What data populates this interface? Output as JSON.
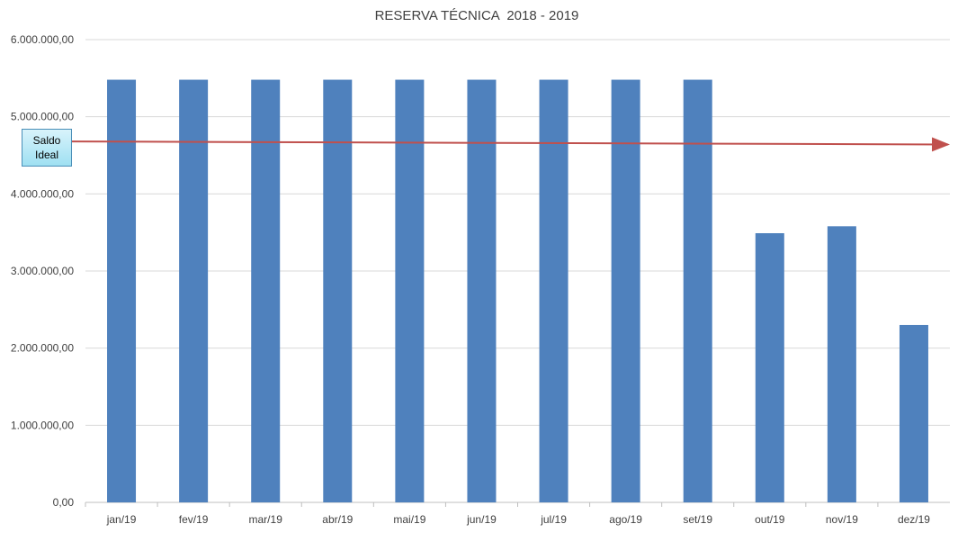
{
  "chart_data": {
    "type": "bar",
    "title": "RESERVA TÉCNICA  2018 - 2019",
    "categories": [
      "jan/19",
      "fev/19",
      "mar/19",
      "abr/19",
      "mai/19",
      "jun/19",
      "jul/19",
      "ago/19",
      "set/19",
      "out/19",
      "nov/19",
      "dez/19"
    ],
    "values": [
      5480000,
      5480000,
      5480000,
      5480000,
      5480000,
      5480000,
      5480000,
      5480000,
      5480000,
      3490000,
      3580000,
      2300000
    ],
    "ylim": [
      0,
      6000000
    ],
    "yticks": [
      "0,00",
      "1.000.000,00",
      "2.000.000,00",
      "3.000.000,00",
      "4.000.000,00",
      "5.000.000,00",
      "6.000.000,00"
    ],
    "grid": true,
    "bar_color": "#4f81bd",
    "reference_line": {
      "label": "Saldo\nIdeal",
      "start_value": 4680000,
      "end_value": 4640000,
      "color": "#c0504d"
    }
  }
}
